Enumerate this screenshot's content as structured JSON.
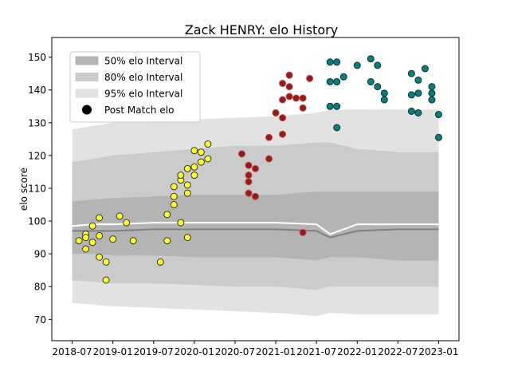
{
  "chart_data": {
    "type": "scatter",
    "title": "Zack HENRY: elo History",
    "ylabel": "elo score",
    "xlim": [
      "2018-04",
      "2023-04"
    ],
    "ylim": [
      63.5,
      156
    ],
    "xticks": [
      "2018-07",
      "2019-01",
      "2019-07",
      "2020-01",
      "2020-07",
      "2021-01",
      "2021-07",
      "2022-01",
      "2022-07",
      "2023-01"
    ],
    "yticks": [
      70,
      80,
      90,
      100,
      110,
      120,
      130,
      140,
      150
    ],
    "bands": {
      "x": [
        "2018-07",
        "2018-10",
        "2019-01",
        "2019-07",
        "2020-01",
        "2020-07",
        "2021-01",
        "2021-07",
        "2021-09",
        "2022-01",
        "2022-07",
        "2023-01"
      ],
      "series": [
        {
          "name": "50% elo Interval",
          "color": "#b4b4b4",
          "lower": [
            90,
            90,
            89.5,
            89.5,
            89,
            89,
            89,
            88,
            89,
            89,
            88,
            88
          ],
          "upper": [
            106,
            106.5,
            107,
            107.5,
            108,
            108,
            108,
            109,
            109,
            109,
            109,
            109
          ]
        },
        {
          "name": "80% elo Interval",
          "color": "#cbcbcb",
          "lower": [
            82,
            81.5,
            81,
            81,
            80.5,
            80,
            80,
            79,
            80,
            80,
            80,
            80
          ],
          "upper": [
            118,
            119,
            120,
            121,
            122,
            123,
            123,
            124,
            124,
            122,
            121,
            121
          ]
        },
        {
          "name": "95% elo Interval",
          "color": "#e2e2e2",
          "lower": [
            75,
            74.5,
            74,
            73.5,
            73,
            72.5,
            72,
            71,
            72,
            71.5,
            71.5,
            71.5
          ],
          "upper": [
            128,
            129,
            130,
            130.5,
            131,
            131.5,
            132,
            133,
            134,
            134,
            134,
            134
          ]
        }
      ]
    },
    "lines": [
      {
        "color": "#ffffff",
        "values": [
          98.5,
          99,
          99,
          99.5,
          99.5,
          99.5,
          99.5,
          99,
          96,
          99,
          99,
          99
        ]
      },
      {
        "color": "#808080",
        "values": [
          97,
          97,
          97,
          97.5,
          97.5,
          97.5,
          97.5,
          97,
          95,
          97,
          97.5,
          97.5
        ]
      }
    ],
    "points": [
      {
        "color": "#ffff33",
        "edgecolor": "#333333",
        "x": [
          "2018-08",
          "2018-09",
          "2018-09",
          "2018-09",
          "2018-10",
          "2018-10",
          "2018-11",
          "2018-11",
          "2018-11",
          "2018-12",
          "2018-12",
          "2019-01",
          "2019-02",
          "2019-03",
          "2019-04",
          "2019-08",
          "2019-09",
          "2019-09",
          "2019-10",
          "2019-10",
          "2019-10",
          "2019-11",
          "2019-11",
          "2019-11",
          "2019-12",
          "2019-12",
          "2019-12",
          "2019-12",
          "2020-01",
          "2020-01",
          "2020-01",
          "2020-02",
          "2020-02",
          "2020-03",
          "2020-03"
        ],
        "values": [
          94,
          96,
          91.5,
          95,
          93.5,
          98.5,
          101,
          95.5,
          89,
          82,
          87.5,
          94.5,
          101.5,
          99.5,
          94,
          87.5,
          94,
          102,
          105,
          110.5,
          107.5,
          112.5,
          114,
          99.5,
          108.5,
          111,
          116,
          95,
          121.5,
          116.5,
          114,
          121,
          118,
          123.5,
          119
        ]
      },
      {
        "color": "#8b1e1e",
        "edgecolor": "#d04040",
        "x": [
          "2020-08",
          "2020-09",
          "2020-09",
          "2020-09",
          "2020-09",
          "2020-10",
          "2020-10",
          "2020-12",
          "2020-12",
          "2021-01",
          "2021-01",
          "2021-02",
          "2021-02",
          "2021-02",
          "2021-02",
          "2021-03",
          "2021-03",
          "2021-03",
          "2021-04",
          "2021-05",
          "2021-05",
          "2021-05",
          "2021-06"
        ],
        "values": [
          120.5,
          114,
          117,
          112,
          108.5,
          107.5,
          116,
          125.5,
          119,
          133,
          133,
          126.5,
          131.5,
          137,
          142,
          144.5,
          141,
          138,
          137.5,
          134.5,
          96.5,
          137.5,
          143.5
        ]
      },
      {
        "color": "#0e7c7b",
        "edgecolor": "#063333",
        "x": [
          "2021-09",
          "2021-09",
          "2021-09",
          "2021-10",
          "2021-10",
          "2021-10",
          "2021-10",
          "2021-10",
          "2021-11",
          "2022-01",
          "2022-03",
          "2022-03",
          "2022-04",
          "2022-04",
          "2022-05",
          "2022-05",
          "2022-09",
          "2022-09",
          "2022-09",
          "2022-10",
          "2022-10",
          "2022-10",
          "2022-11",
          "2022-12",
          "2022-12",
          "2022-12",
          "2023-01",
          "2023-01"
        ],
        "values": [
          148.5,
          142.5,
          135,
          128.5,
          135,
          142.5,
          142.5,
          148.5,
          144,
          147.5,
          142.5,
          149.5,
          147.5,
          141,
          137,
          139,
          133.5,
          138.5,
          145,
          143,
          133,
          139,
          146.5,
          141,
          139,
          137,
          132.5,
          125.5
        ]
      }
    ],
    "legend_marker": {
      "name": "Post Match elo",
      "color": "#000000"
    }
  }
}
